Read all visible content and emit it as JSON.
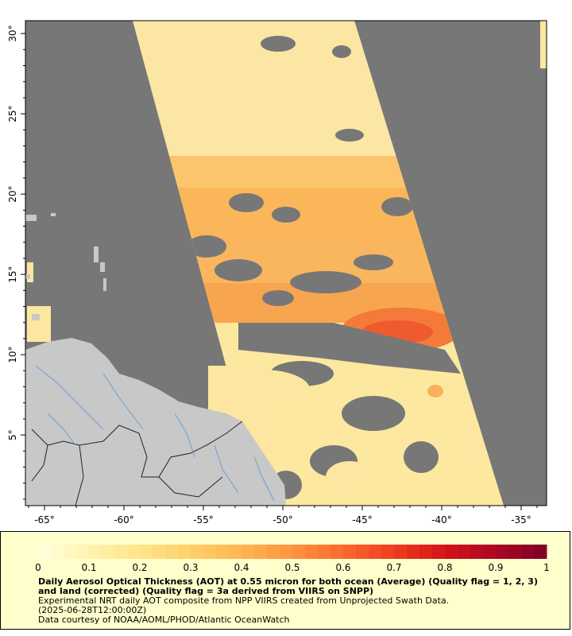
{
  "map": {
    "background_color": "#777777",
    "land_color": "#c8c8c8",
    "river_color": "#6a9fd8",
    "x_tick_labels": [
      "-65°",
      "-60°",
      "-55°",
      "-50°",
      "-45°",
      "-40°",
      "-35°"
    ],
    "y_tick_labels": [
      "30°",
      "25°",
      "20°",
      "15°",
      "10°",
      "5°"
    ],
    "x_ticks_deg": [
      -65,
      -60,
      -55,
      -50,
      -45,
      -40,
      -35
    ],
    "y_ticks_deg": [
      30,
      25,
      20,
      15,
      10,
      5
    ],
    "lon_range": [
      -66.2,
      -33.4
    ],
    "lat_range": [
      0.6,
      30.8
    ]
  },
  "legend": {
    "tick_labels": [
      "0",
      "0.1",
      "0.2",
      "0.3",
      "0.4",
      "0.5",
      "0.6",
      "0.7",
      "0.8",
      "0.9",
      "1"
    ],
    "tick_values": [
      0,
      0.1,
      0.2,
      0.3,
      0.4,
      0.5,
      0.6,
      0.7,
      0.8,
      0.9,
      1
    ],
    "color_stops": [
      "#ffffe0",
      "#fff3b0",
      "#ffe48a",
      "#ffd06a",
      "#ffb552",
      "#ff9440",
      "#fb6a2e",
      "#ee3d1f",
      "#d41418",
      "#ac0624",
      "#7d0027"
    ],
    "title": "Daily Aerosol Optical Thickness (AOT) at 0.55 micron for both ocean (Average) (Quality flag = 1, 2, 3) and land (corrected) (Quality flag = 3a derived from VIIRS on SNPP)",
    "line1": "Experimental NRT daily AOT composite from NPP VIIRS created from Unprojected Swath Data.",
    "line2": "(2025-06-28T12:00:00Z)",
    "line3": "Data courtesy of NOAA/AOML/PHOD/Atlantic OceanWatch"
  }
}
